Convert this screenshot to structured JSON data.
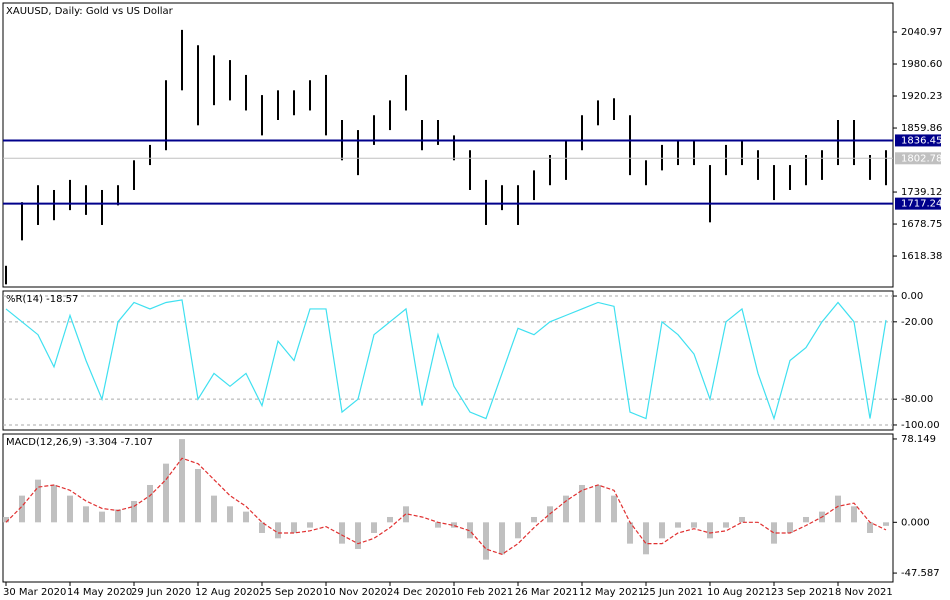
{
  "chart_data": [
    {
      "type": "ohlc",
      "title": "XAUUSD, Daily:  Gold vs US Dollar",
      "color": "#000000",
      "high": [
        1600,
        1720,
        1752,
        1743,
        1762,
        1752,
        1743,
        1752,
        1799,
        1828,
        1950,
        2045,
        2016,
        1997,
        1988,
        1960,
        1922,
        1931,
        1931,
        1950,
        1960,
        1875,
        1856,
        1884,
        1912,
        1960,
        1875,
        1875,
        1846,
        1818,
        1762,
        1752,
        1752,
        1780,
        1809,
        1837,
        1884,
        1912,
        1916,
        1884,
        1799,
        1828,
        1837,
        1837,
        1790,
        1828,
        1837,
        1818,
        1790,
        1790,
        1809,
        1818,
        1875,
        1875,
        1809,
        1818
      ],
      "low": [
        1565,
        1648,
        1677,
        1686,
        1705,
        1696,
        1677,
        1714,
        1743,
        1790,
        1818,
        1931,
        1865,
        1903,
        1912,
        1893,
        1846,
        1875,
        1884,
        1893,
        1846,
        1799,
        1771,
        1828,
        1856,
        1893,
        1818,
        1828,
        1799,
        1743,
        1677,
        1705,
        1677,
        1724,
        1752,
        1762,
        1818,
        1865,
        1875,
        1771,
        1752,
        1780,
        1790,
        1790,
        1682,
        1771,
        1790,
        1762,
        1724,
        1743,
        1752,
        1762,
        1790,
        1790,
        1762,
        1752
      ],
      "ylim": [
        1560,
        2095.7
      ],
      "yticks": [
        2040.97,
        {
          "value": 1980.6,
          "label": "1980.60"
        },
        1920.23,
        1859.86,
        1739.12,
        1678.75,
        1618.38
      ],
      "levels": [
        {
          "value": 1836.45,
          "color": "#00008b"
        },
        {
          "value": 1717.24,
          "color": "#00008b"
        }
      ],
      "current_price": 1802.78
    },
    {
      "type": "line",
      "title": "%R(14)",
      "color": "#3fe0f0",
      "values": [
        -10,
        -20,
        -30,
        -55,
        -15,
        -50,
        -80,
        -20,
        -5,
        -10,
        -5,
        -3,
        -80,
        -60,
        -70,
        -60,
        -85,
        -35,
        -50,
        -10,
        -10,
        -90,
        -80,
        -30,
        -20,
        -10,
        -85,
        -30,
        -70,
        -90,
        -95,
        -60,
        -25,
        -30,
        -20,
        -15,
        -10,
        -5,
        -8,
        -90,
        -95,
        -20,
        -30,
        -45,
        -80,
        -20,
        -10,
        -60,
        -95,
        -50,
        -40,
        -20,
        -5,
        -20,
        -95,
        -18.57
      ],
      "ylim": [
        -103.9,
        3.9
      ],
      "yticks": [
        {
          "value": 0,
          "label": "0.00"
        },
        {
          "value": -20,
          "label": "-20.00"
        },
        {
          "value": -80,
          "label": "-80.00"
        },
        {
          "value": -100,
          "label": "-100.00"
        }
      ],
      "grid": true
    },
    {
      "type": "macd",
      "title": "MACD(12,26,9)",
      "categories": [
        "30 Mar 2020",
        null,
        null,
        null,
        "14 May 2020",
        null,
        null,
        null,
        "29 Jun 2020",
        null,
        null,
        null,
        "12 Aug 2020",
        null,
        null,
        null,
        "25 Sep 2020",
        null,
        null,
        null,
        "10 Nov 2020",
        null,
        null,
        null,
        "24 Dec 2020",
        null,
        null,
        null,
        "10 Feb 2021",
        null,
        null,
        null,
        "26 Mar 2021",
        null,
        null,
        null,
        "12 May 2021",
        null,
        null,
        null,
        "25 Jun 2021",
        null,
        null,
        null,
        "10 Aug 2021",
        null,
        null,
        null,
        "23 Sep 2021",
        null,
        null,
        null,
        "8 Nov 2021",
        null,
        null,
        null
      ],
      "series": [
        {
          "name": "MACD",
          "color": "#c0c0c0",
          "values": [
            5,
            25,
            40,
            35,
            25,
            15,
            10,
            12,
            20,
            35,
            55,
            78,
            50,
            25,
            15,
            10,
            -10,
            -15,
            -10,
            -5,
            0,
            -20,
            -25,
            -10,
            5,
            15,
            0,
            -5,
            -5,
            -15,
            -35,
            -30,
            -15,
            5,
            15,
            25,
            35,
            35,
            25,
            -20,
            -30,
            -15,
            -5,
            -5,
            -15,
            -5,
            5,
            0,
            -20,
            -10,
            5,
            10,
            25,
            15,
            -10,
            -3.304
          ]
        },
        {
          "name": "Signal",
          "color": "#e03030",
          "values": [
            0,
            15,
            33,
            35,
            30,
            20,
            13,
            11,
            15,
            25,
            40,
            60,
            55,
            40,
            25,
            15,
            0,
            -10,
            -10,
            -8,
            -4,
            -12,
            -20,
            -15,
            -5,
            8,
            5,
            0,
            -3,
            -8,
            -25,
            -30,
            -20,
            -5,
            8,
            20,
            30,
            35,
            30,
            0,
            -20,
            -20,
            -10,
            -6,
            -10,
            -8,
            0,
            0,
            -10,
            -10,
            -3,
            5,
            15,
            18,
            0,
            -7.107
          ]
        }
      ],
      "ylim": [
        -55.96,
        82.8
      ],
      "yticks": [
        78.149,
        {
          "value": 0,
          "label": "0.000"
        },
        -47.587
      ]
    }
  ]
}
